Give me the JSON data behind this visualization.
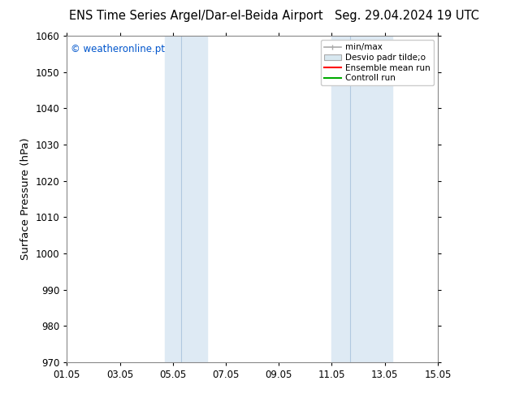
{
  "title_left": "ENS Time Series Argel/Dar-el-Beida Airport",
  "title_right": "Seg. 29.04.2024 19 UTC",
  "ylabel": "Surface Pressure (hPa)",
  "ylim": [
    970,
    1060
  ],
  "yticks": [
    970,
    980,
    990,
    1000,
    1010,
    1020,
    1030,
    1040,
    1050,
    1060
  ],
  "xtick_labels": [
    "01.05",
    "03.05",
    "05.05",
    "07.05",
    "09.05",
    "11.05",
    "13.05",
    "15.05"
  ],
  "xtick_positions": [
    0,
    2,
    4,
    6,
    8,
    10,
    12,
    14
  ],
  "shaded_bands": [
    {
      "x_start": 3.7,
      "x_end": 4.3,
      "color": "#deeaf4"
    },
    {
      "x_start": 4.3,
      "x_end": 5.3,
      "color": "#deeaf4"
    },
    {
      "x_start": 10.0,
      "x_end": 10.7,
      "color": "#deeaf4"
    },
    {
      "x_start": 10.7,
      "x_end": 12.3,
      "color": "#deeaf4"
    }
  ],
  "band_dividers": [
    4.3,
    10.7
  ],
  "watermark_text": "© weatheronline.pt",
  "watermark_color": "#0055cc",
  "legend_labels": [
    "min/max",
    "Desvio padr tilde;o",
    "Ensemble mean run",
    "Controll run"
  ],
  "legend_colors_line": [
    "#aaaaaa",
    "#cccccc",
    "#ff0000",
    "#00aa00"
  ],
  "bg_color": "#ffffff",
  "plot_bg_color": "#ffffff",
  "title_fontsize": 10.5,
  "tick_fontsize": 8.5,
  "ylabel_fontsize": 9.5
}
